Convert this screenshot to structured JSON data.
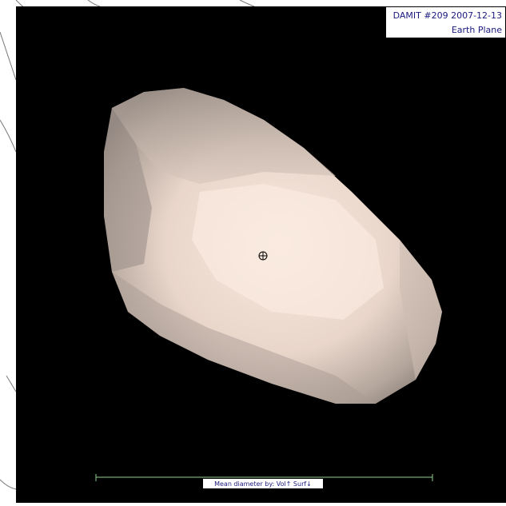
{
  "info_box": {
    "line1": "DAMIT #209 2007-12-13",
    "line2": "Earth Plane"
  },
  "scale_bar": {
    "label": "Mean diameter by: Vol↑ Surf↓"
  }
}
